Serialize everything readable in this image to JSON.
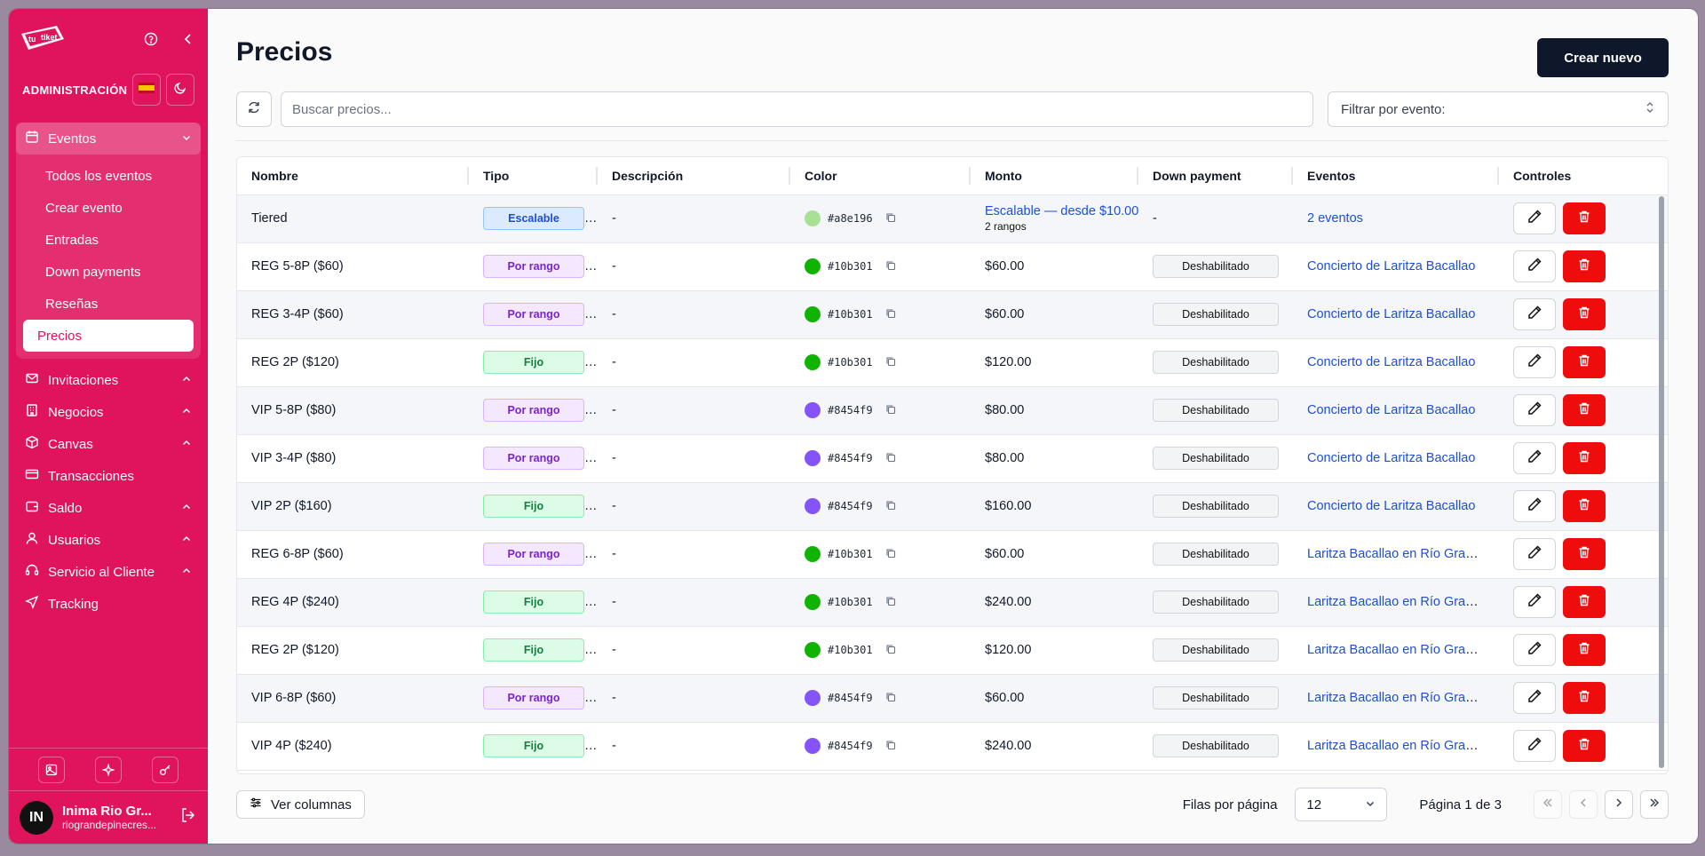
{
  "sidebar": {
    "logo_text": "tu tiket",
    "admin_label": "ADMINISTRACIÓN",
    "nav": [
      {
        "label": "Eventos",
        "icon": "calendar-icon",
        "open": true
      },
      {
        "label": "Invitaciones",
        "icon": "mail-icon"
      },
      {
        "label": "Negocios",
        "icon": "building-icon"
      },
      {
        "label": "Canvas",
        "icon": "box-icon"
      },
      {
        "label": "Transacciones",
        "icon": "card-icon"
      },
      {
        "label": "Saldo",
        "icon": "wallet-icon"
      },
      {
        "label": "Usuarios",
        "icon": "user-icon"
      },
      {
        "label": "Servicio al Cliente",
        "icon": "headset-icon"
      },
      {
        "label": "Tracking",
        "icon": "send-icon"
      }
    ],
    "sub_items": [
      "Todos los eventos",
      "Crear evento",
      "Entradas",
      "Down payments",
      "Reseñas",
      "Precios"
    ],
    "user": {
      "initials": "IN",
      "name": "Inima Rio Gr...",
      "email": "riograndepinecres..."
    }
  },
  "page": {
    "title": "Precios",
    "create_label": "Crear nuevo",
    "search_placeholder": "Buscar precios...",
    "filter_label": "Filtrar por evento:"
  },
  "table": {
    "columns": [
      "Nombre",
      "Tipo",
      "Descripción",
      "Color",
      "Monto",
      "Down payment",
      "Eventos",
      "Controles"
    ],
    "rows": [
      {
        "nombre": "Tiered",
        "tipo": "Escalable",
        "tipo_kind": "esc",
        "desc": "-",
        "color": "#a8e196",
        "hex": "#a8e196",
        "monto": "Escalable — desde $10.00",
        "monto_sub": "2 rangos",
        "dp": "-",
        "eventos": "2 eventos"
      },
      {
        "nombre": "REG 5-8P ($60)",
        "tipo": "Por rango",
        "tipo_kind": "rng",
        "desc": "-",
        "color": "#10b301",
        "hex": "#10b301",
        "monto": "$60.00",
        "dp": "Deshabilitado",
        "eventos": "Concierto de Laritza Bacallao"
      },
      {
        "nombre": "REG 3-4P ($60)",
        "tipo": "Por rango",
        "tipo_kind": "rng",
        "desc": "-",
        "color": "#10b301",
        "hex": "#10b301",
        "monto": "$60.00",
        "dp": "Deshabilitado",
        "eventos": "Concierto de Laritza Bacallao"
      },
      {
        "nombre": "REG 2P ($120)",
        "tipo": "Fijo",
        "tipo_kind": "fij",
        "desc": "-",
        "color": "#10b301",
        "hex": "#10b301",
        "monto": "$120.00",
        "dp": "Deshabilitado",
        "eventos": "Concierto de Laritza Bacallao"
      },
      {
        "nombre": "VIP 5-8P ($80)",
        "tipo": "Por rango",
        "tipo_kind": "rng",
        "desc": "-",
        "color": "#8454f9",
        "hex": "#8454f9",
        "monto": "$80.00",
        "dp": "Deshabilitado",
        "eventos": "Concierto de Laritza Bacallao"
      },
      {
        "nombre": "VIP 3-4P ($80)",
        "tipo": "Por rango",
        "tipo_kind": "rng",
        "desc": "-",
        "color": "#8454f9",
        "hex": "#8454f9",
        "monto": "$80.00",
        "dp": "Deshabilitado",
        "eventos": "Concierto de Laritza Bacallao"
      },
      {
        "nombre": "VIP 2P ($160)",
        "tipo": "Fijo",
        "tipo_kind": "fij",
        "desc": "-",
        "color": "#8454f9",
        "hex": "#8454f9",
        "monto": "$160.00",
        "dp": "Deshabilitado",
        "eventos": "Concierto de Laritza Bacallao"
      },
      {
        "nombre": "REG 6-8P ($60)",
        "tipo": "Por rango",
        "tipo_kind": "rng",
        "desc": "-",
        "color": "#10b301",
        "hex": "#10b301",
        "monto": "$60.00",
        "dp": "Deshabilitado",
        "eventos": "Laritza Bacallao en Río Grande"
      },
      {
        "nombre": "REG 4P ($240)",
        "tipo": "Fijo",
        "tipo_kind": "fij",
        "desc": "-",
        "color": "#10b301",
        "hex": "#10b301",
        "monto": "$240.00",
        "dp": "Deshabilitado",
        "eventos": "Laritza Bacallao en Río Grande"
      },
      {
        "nombre": "REG 2P ($120)",
        "tipo": "Fijo",
        "tipo_kind": "fij",
        "desc": "-",
        "color": "#10b301",
        "hex": "#10b301",
        "monto": "$120.00",
        "dp": "Deshabilitado",
        "eventos": "Laritza Bacallao en Río Grande"
      },
      {
        "nombre": "VIP 6-8P ($60)",
        "tipo": "Por rango",
        "tipo_kind": "rng",
        "desc": "-",
        "color": "#8454f9",
        "hex": "#8454f9",
        "monto": "$60.00",
        "dp": "Deshabilitado",
        "eventos": "Laritza Bacallao en Río Grande"
      },
      {
        "nombre": "VIP 4P ($240)",
        "tipo": "Fijo",
        "tipo_kind": "fij",
        "desc": "-",
        "color": "#8454f9",
        "hex": "#8454f9",
        "monto": "$240.00",
        "dp": "Deshabilitado",
        "eventos": "Laritza Bacallao en Río Grande"
      }
    ]
  },
  "footer": {
    "columns_label": "Ver columnas",
    "rows_label": "Filas por página",
    "rows_value": "12",
    "page_label": "Página 1 de 3"
  },
  "colors": {
    "brand": "#e0135d",
    "danger": "#ef0c0c",
    "dark": "#0f172a"
  }
}
